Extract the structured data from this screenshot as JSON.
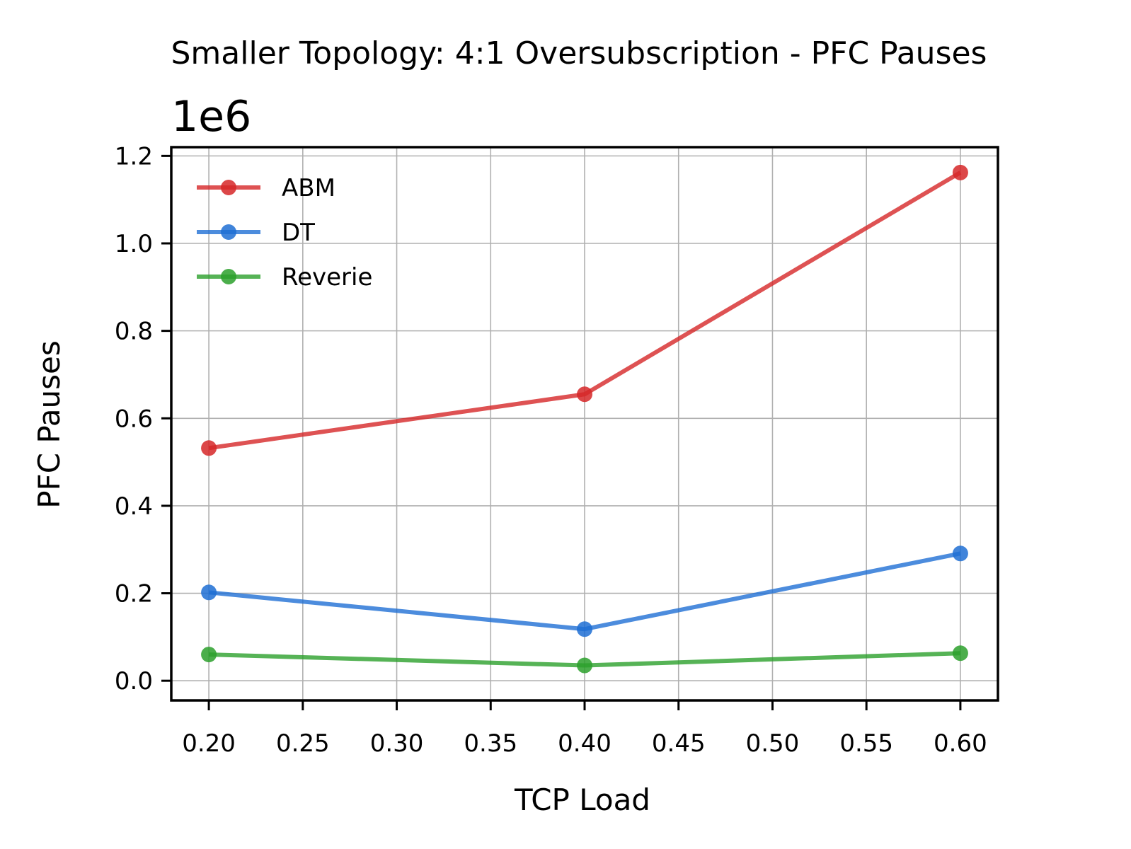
{
  "chart_data": {
    "type": "line",
    "title": "Smaller Topology: 4:1 Oversubscription - PFC Pauses",
    "xlabel": "TCP Load",
    "ylabel": "PFC Pauses",
    "y_offset_label": "1e6",
    "x": [
      0.2,
      0.4,
      0.6
    ],
    "xlim": [
      0.18,
      0.62
    ],
    "ylim": [
      -0.045,
      1.22
    ],
    "x_ticks": [
      0.2,
      0.25,
      0.3,
      0.35,
      0.4,
      0.45,
      0.5,
      0.55,
      0.6
    ],
    "x_tick_labels": [
      "0.20",
      "0.25",
      "0.30",
      "0.35",
      "0.40",
      "0.45",
      "0.50",
      "0.55",
      "0.60"
    ],
    "y_ticks": [
      0.0,
      0.2,
      0.4,
      0.6,
      0.8,
      1.0,
      1.2
    ],
    "y_tick_labels": [
      "0.0",
      "0.2",
      "0.4",
      "0.6",
      "0.8",
      "1.0",
      "1.2"
    ],
    "grid": true,
    "legend_position": "top-left",
    "series": [
      {
        "name": "ABM",
        "color": "#d62728",
        "values": [
          0.532,
          0.655,
          1.162
        ]
      },
      {
        "name": "DT",
        "color": "#1f6fd4",
        "values": [
          0.202,
          0.118,
          0.291
        ]
      },
      {
        "name": "Reverie",
        "color": "#2ca02c",
        "values": [
          0.06,
          0.035,
          0.063
        ]
      }
    ]
  }
}
